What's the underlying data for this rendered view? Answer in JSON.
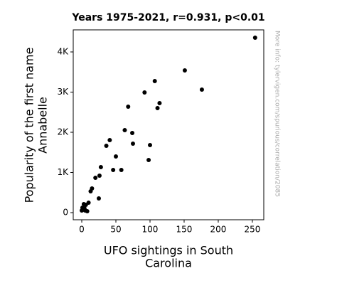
{
  "chart_data": {
    "type": "scatter",
    "title": "Years 1975-2021, r=0.931, p<0.01",
    "x_label": [
      "UFO sightings in South",
      "Carolina"
    ],
    "y_label": [
      "Popularity of the first name",
      "Annabelle"
    ],
    "note": "More info: tylervigen.com/spurious/correlation/2085",
    "color": "#000000",
    "x": [
      254,
      151,
      176,
      107,
      92,
      68,
      114,
      111,
      63,
      74,
      75,
      100,
      41,
      36,
      50,
      98,
      28,
      58,
      46,
      20,
      26,
      15,
      13,
      25,
      10,
      3,
      6,
      2,
      5,
      0,
      8,
      4,
      1
    ],
    "values": [
      4354,
      3540,
      3062,
      3274,
      2991,
      2637,
      2726,
      2602,
      2053,
      1982,
      1717,
      1681,
      1805,
      1664,
      1398,
      1310,
      1133,
      1062,
      1062,
      867,
      920,
      602,
      531,
      354,
      248,
      212,
      195,
      88,
      53,
      53,
      35,
      106,
      124
    ],
    "xlim": [
      -12.5,
      266.7
    ],
    "ylim": [
      -177,
      4549
    ],
    "xticks": [
      0,
      50,
      100,
      150,
      200,
      250
    ],
    "yticks": [
      0,
      {
        "value": 1000,
        "label": "1K"
      },
      {
        "value": 2000,
        "label": "2K"
      },
      {
        "value": 3000,
        "label": "3K"
      },
      {
        "value": 4000,
        "label": "4K"
      }
    ]
  }
}
